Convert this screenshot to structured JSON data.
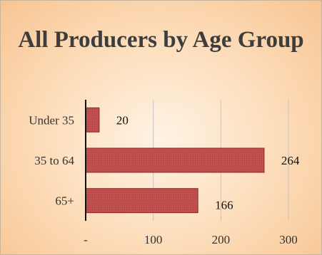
{
  "chart_data": {
    "type": "bar",
    "orientation": "horizontal",
    "title": "All Producers by Age Group",
    "categories": [
      "Under 35",
      "35 to 64",
      "65+"
    ],
    "values": [
      20,
      264,
      166
    ],
    "data_labels": [
      "20",
      "264",
      "166"
    ],
    "x_ticks": [
      0,
      100,
      200,
      300
    ],
    "x_tick_labels": [
      "-",
      "100",
      "200",
      "300"
    ],
    "xlim": [
      0,
      300
    ],
    "grid": "vertical",
    "legend": "none",
    "colors": {
      "bar": "#c0504d",
      "bar_edge": "#8b2a27",
      "grid": "#c4c4c4",
      "axis": "#111111"
    }
  }
}
